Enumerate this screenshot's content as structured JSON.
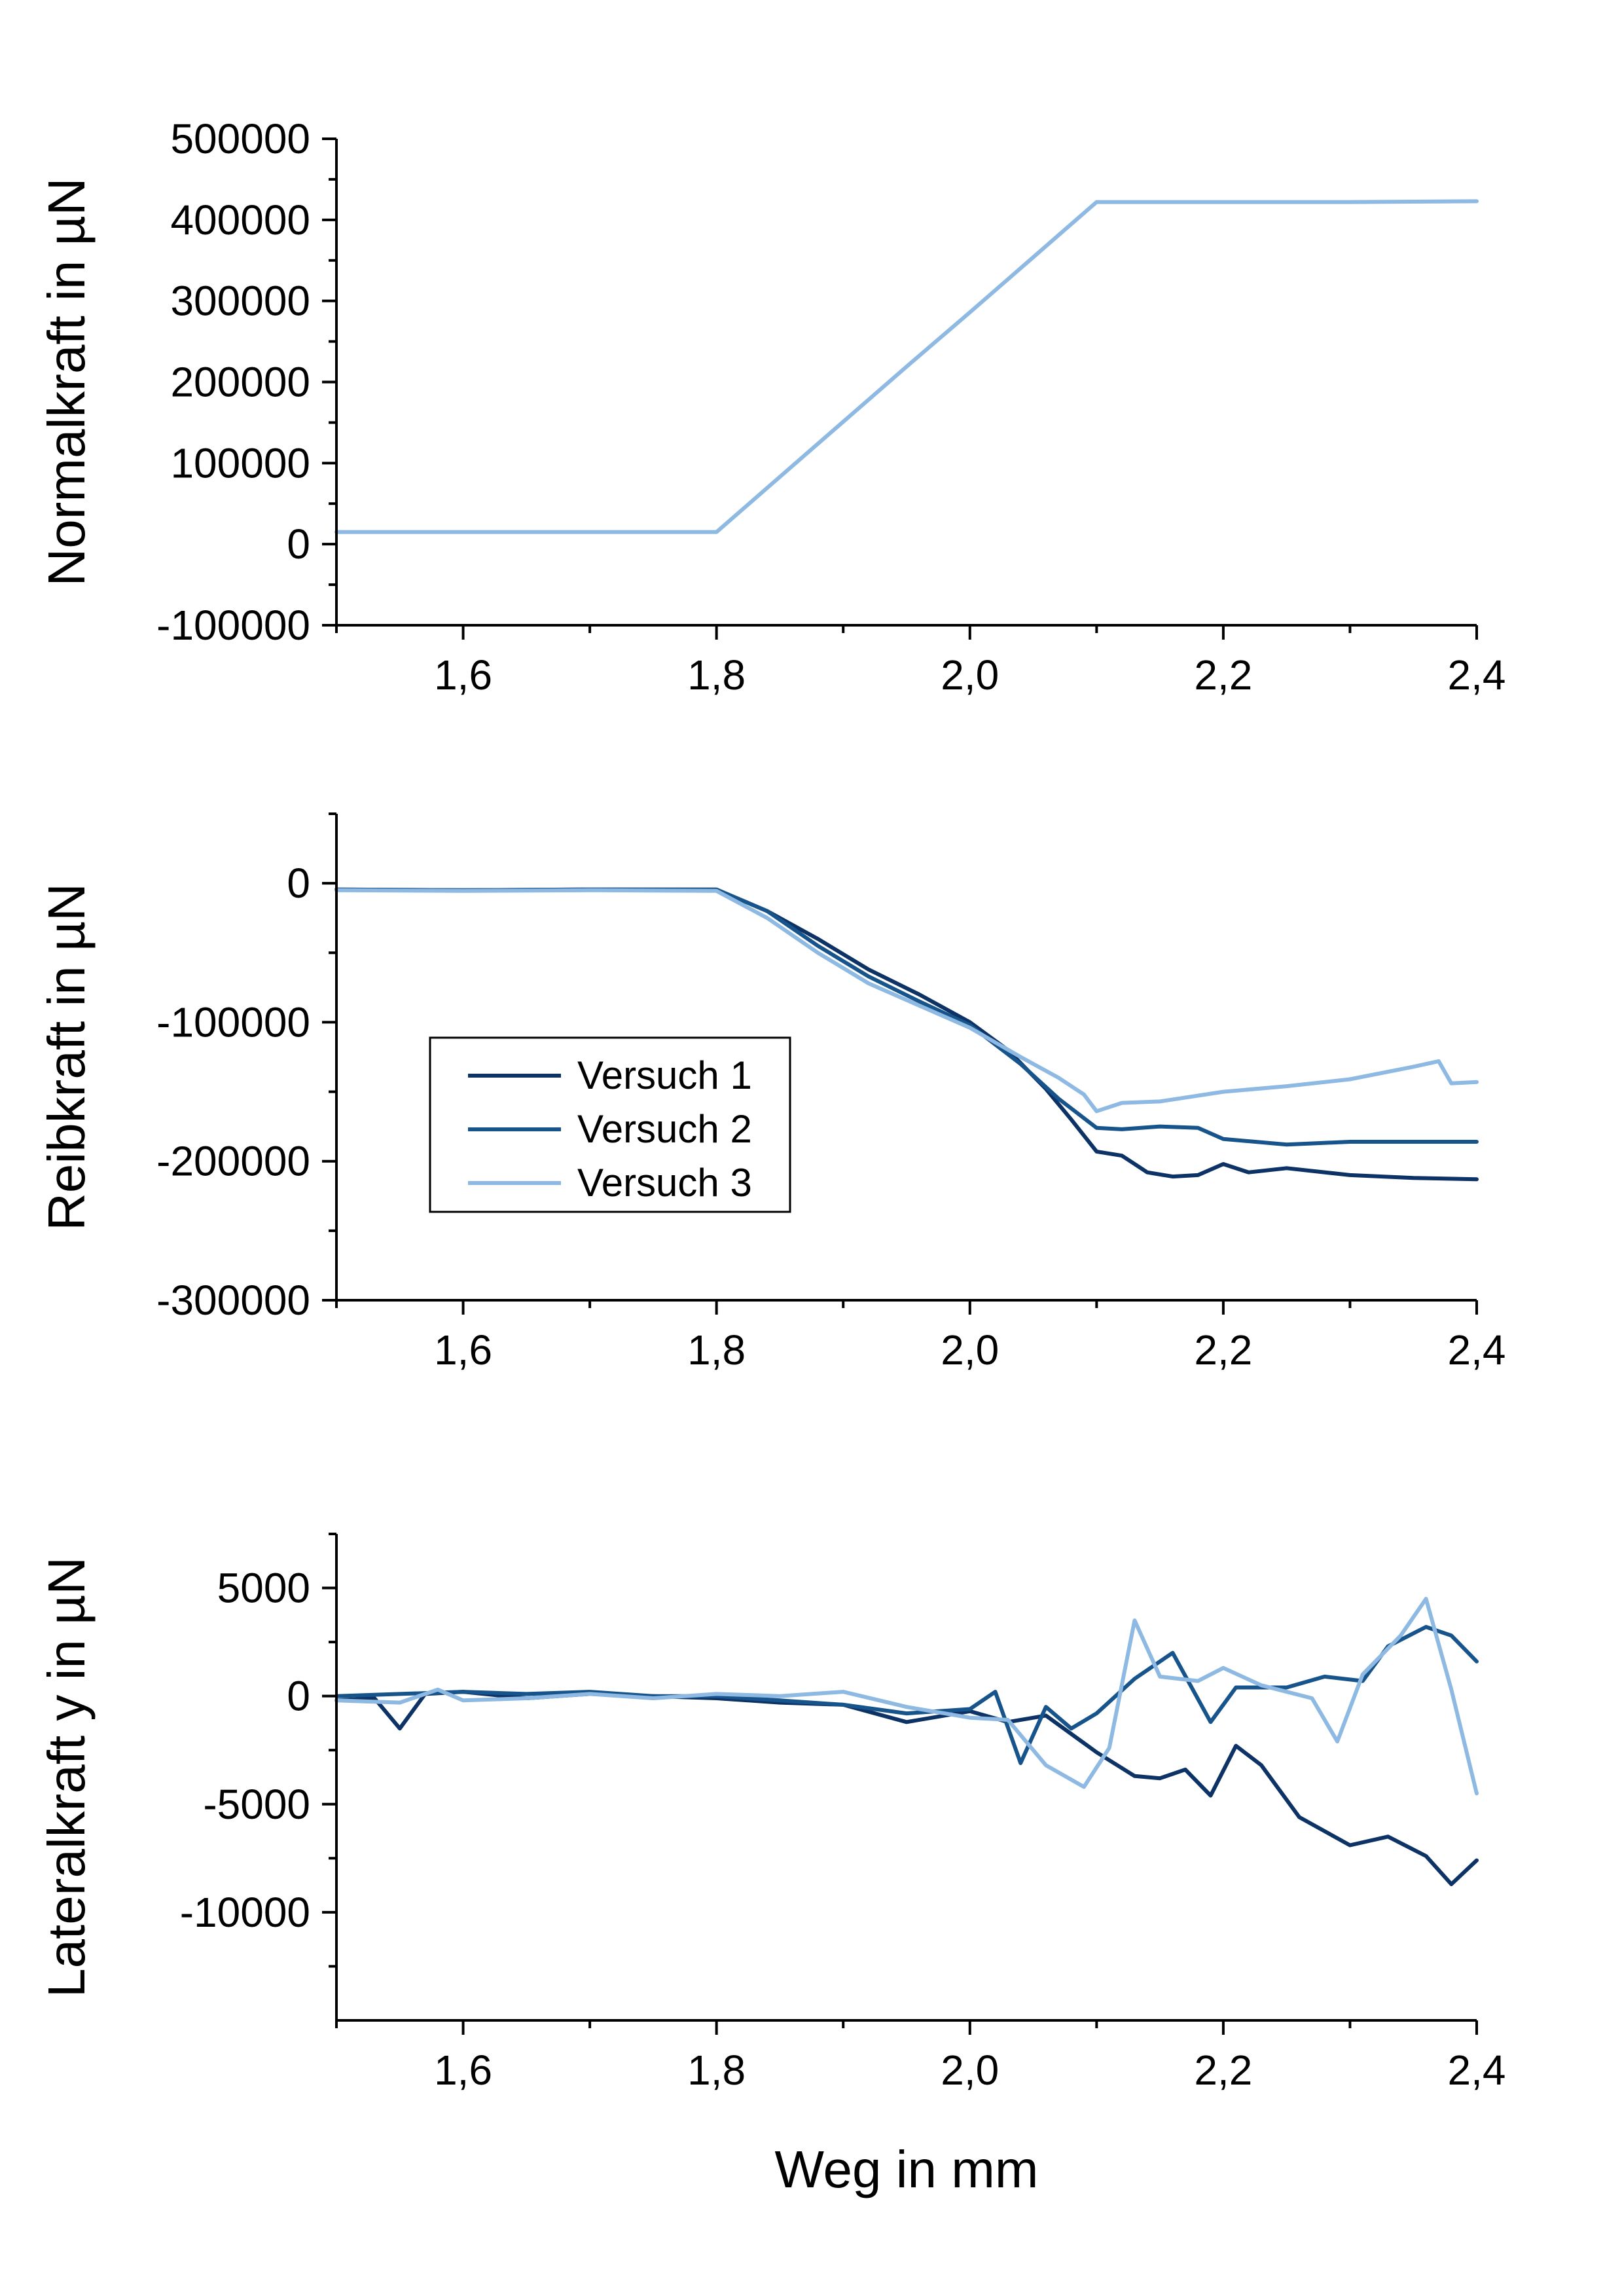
{
  "chart_data": [
    {
      "type": "line",
      "ylabel": "Normalkraft in µN",
      "xlabel": "",
      "xlim": [
        1.5,
        2.4
      ],
      "ylim": [
        -100000,
        500000
      ],
      "x_ticks": [
        "1,6",
        "1,8",
        "2,0",
        "2,2",
        "2,4"
      ],
      "y_ticks": [
        "-100000",
        "0",
        "100000",
        "200000",
        "300000",
        "400000",
        "500000"
      ],
      "series": [
        {
          "color": "#8db9e2",
          "points": [
            [
              1.5,
              15000
            ],
            [
              1.6,
              15000
            ],
            [
              1.7,
              15000
            ],
            [
              1.8,
              15000
            ],
            [
              1.85,
              83000
            ],
            [
              1.9,
              151000
            ],
            [
              1.95,
              219000
            ],
            [
              2.0,
              286000
            ],
            [
              2.05,
              354000
            ],
            [
              2.1,
              422000
            ],
            [
              2.2,
              422000
            ],
            [
              2.3,
              422000
            ],
            [
              2.4,
              423000
            ]
          ]
        }
      ]
    },
    {
      "type": "line",
      "ylabel": "Reibkraft in µN",
      "xlabel": "",
      "xlim": [
        1.5,
        2.4
      ],
      "ylim": [
        -300000,
        50000
      ],
      "x_ticks": [
        "1,6",
        "1,8",
        "2,0",
        "2,2",
        "2,4"
      ],
      "y_ticks": [
        "-300000",
        "-200000",
        "-100000",
        "0"
      ],
      "legend": {
        "position": "center-left",
        "entries": [
          "Versuch 1",
          "Versuch 2",
          "Versuch 3"
        ]
      },
      "series": [
        {
          "name": "Versuch 1",
          "color": "#0d3266",
          "points": [
            [
              1.5,
              -4500
            ],
            [
              1.6,
              -5000
            ],
            [
              1.7,
              -4500
            ],
            [
              1.8,
              -4500
            ],
            [
              1.84,
              -20000
            ],
            [
              1.88,
              -40000
            ],
            [
              1.92,
              -62000
            ],
            [
              1.96,
              -80000
            ],
            [
              2.0,
              -100000
            ],
            [
              2.03,
              -120000
            ],
            [
              2.06,
              -148000
            ],
            [
              2.08,
              -170000
            ],
            [
              2.1,
              -193000
            ],
            [
              2.12,
              -196000
            ],
            [
              2.14,
              -208000
            ],
            [
              2.16,
              -211000
            ],
            [
              2.18,
              -210000
            ],
            [
              2.2,
              -202000
            ],
            [
              2.22,
              -208000
            ],
            [
              2.25,
              -205000
            ],
            [
              2.3,
              -210000
            ],
            [
              2.35,
              -212000
            ],
            [
              2.4,
              -213000
            ]
          ]
        },
        {
          "name": "Versuch 2",
          "color": "#17548b",
          "points": [
            [
              1.5,
              -4500
            ],
            [
              1.6,
              -5000
            ],
            [
              1.7,
              -4500
            ],
            [
              1.8,
              -4500
            ],
            [
              1.84,
              -20000
            ],
            [
              1.88,
              -45000
            ],
            [
              1.92,
              -67000
            ],
            [
              1.96,
              -85000
            ],
            [
              2.0,
              -102000
            ],
            [
              2.04,
              -130000
            ],
            [
              2.07,
              -155000
            ],
            [
              2.1,
              -176000
            ],
            [
              2.12,
              -177000
            ],
            [
              2.15,
              -175000
            ],
            [
              2.18,
              -176000
            ],
            [
              2.2,
              -184000
            ],
            [
              2.25,
              -188000
            ],
            [
              2.3,
              -186000
            ],
            [
              2.35,
              -186000
            ],
            [
              2.4,
              -186000
            ]
          ]
        },
        {
          "name": "Versuch 3",
          "color": "#8db9e2",
          "points": [
            [
              1.5,
              -5000
            ],
            [
              1.6,
              -5500
            ],
            [
              1.7,
              -5000
            ],
            [
              1.8,
              -5500
            ],
            [
              1.84,
              -25000
            ],
            [
              1.88,
              -50000
            ],
            [
              1.92,
              -72000
            ],
            [
              1.96,
              -88000
            ],
            [
              2.0,
              -104000
            ],
            [
              2.04,
              -125000
            ],
            [
              2.07,
              -140000
            ],
            [
              2.09,
              -152000
            ],
            [
              2.1,
              -164000
            ],
            [
              2.12,
              -158000
            ],
            [
              2.15,
              -157000
            ],
            [
              2.2,
              -150000
            ],
            [
              2.25,
              -146000
            ],
            [
              2.3,
              -141000
            ],
            [
              2.35,
              -132000
            ],
            [
              2.37,
              -128000
            ],
            [
              2.38,
              -144000
            ],
            [
              2.4,
              -143000
            ]
          ]
        }
      ]
    },
    {
      "type": "line",
      "ylabel": "Lateralkraft y in µN",
      "xlabel": "Weg in mm",
      "xlim": [
        1.5,
        2.4
      ],
      "ylim": [
        -15000,
        7500
      ],
      "x_ticks": [
        "1,6",
        "1,8",
        "2,0",
        "2,2",
        "2,4"
      ],
      "y_ticks": [
        "-10000",
        "-5000",
        "0",
        "5000"
      ],
      "series": [
        {
          "name": "Versuch 1",
          "color": "#0d3266",
          "points": [
            [
              1.5,
              -200
            ],
            [
              1.53,
              -100
            ],
            [
              1.55,
              -1500
            ],
            [
              1.57,
              100
            ],
            [
              1.6,
              200
            ],
            [
              1.65,
              -100
            ],
            [
              1.7,
              100
            ],
            [
              1.75,
              0
            ],
            [
              1.8,
              -100
            ],
            [
              1.85,
              -300
            ],
            [
              1.9,
              -400
            ],
            [
              1.95,
              -1200
            ],
            [
              2.0,
              -700
            ],
            [
              2.03,
              -1200
            ],
            [
              2.06,
              -900
            ],
            [
              2.1,
              -2600
            ],
            [
              2.13,
              -3700
            ],
            [
              2.15,
              -3800
            ],
            [
              2.17,
              -3400
            ],
            [
              2.19,
              -4600
            ],
            [
              2.21,
              -2300
            ],
            [
              2.23,
              -3200
            ],
            [
              2.26,
              -5600
            ],
            [
              2.3,
              -6900
            ],
            [
              2.33,
              -6500
            ],
            [
              2.36,
              -7400
            ],
            [
              2.38,
              -8700
            ],
            [
              2.4,
              -7600
            ]
          ]
        },
        {
          "name": "Versuch 2",
          "color": "#17548b",
          "points": [
            [
              1.5,
              0
            ],
            [
              1.55,
              100
            ],
            [
              1.6,
              200
            ],
            [
              1.65,
              100
            ],
            [
              1.7,
              200
            ],
            [
              1.75,
              0
            ],
            [
              1.8,
              0
            ],
            [
              1.85,
              -200
            ],
            [
              1.9,
              -400
            ],
            [
              1.95,
              -800
            ],
            [
              2.0,
              -600
            ],
            [
              2.02,
              200
            ],
            [
              2.04,
              -3100
            ],
            [
              2.06,
              -500
            ],
            [
              2.08,
              -1500
            ],
            [
              2.1,
              -800
            ],
            [
              2.13,
              800
            ],
            [
              2.16,
              2000
            ],
            [
              2.19,
              -1200
            ],
            [
              2.21,
              400
            ],
            [
              2.25,
              400
            ],
            [
              2.28,
              900
            ],
            [
              2.31,
              700
            ],
            [
              2.33,
              2300
            ],
            [
              2.36,
              3200
            ],
            [
              2.38,
              2800
            ],
            [
              2.4,
              1600
            ]
          ]
        },
        {
          "name": "Versuch 3",
          "color": "#8db9e2",
          "points": [
            [
              1.5,
              -200
            ],
            [
              1.55,
              -300
            ],
            [
              1.58,
              300
            ],
            [
              1.6,
              -200
            ],
            [
              1.65,
              -100
            ],
            [
              1.7,
              100
            ],
            [
              1.75,
              -100
            ],
            [
              1.8,
              100
            ],
            [
              1.85,
              0
            ],
            [
              1.9,
              200
            ],
            [
              1.95,
              -500
            ],
            [
              2.0,
              -1000
            ],
            [
              2.03,
              -1100
            ],
            [
              2.06,
              -3200
            ],
            [
              2.09,
              -4200
            ],
            [
              2.11,
              -2400
            ],
            [
              2.13,
              3500
            ],
            [
              2.15,
              900
            ],
            [
              2.18,
              700
            ],
            [
              2.2,
              1300
            ],
            [
              2.23,
              500
            ],
            [
              2.27,
              -100
            ],
            [
              2.29,
              -2100
            ],
            [
              2.31,
              1000
            ],
            [
              2.34,
              2800
            ],
            [
              2.36,
              4500
            ],
            [
              2.38,
              300
            ],
            [
              2.4,
              -4500
            ]
          ]
        }
      ]
    }
  ]
}
